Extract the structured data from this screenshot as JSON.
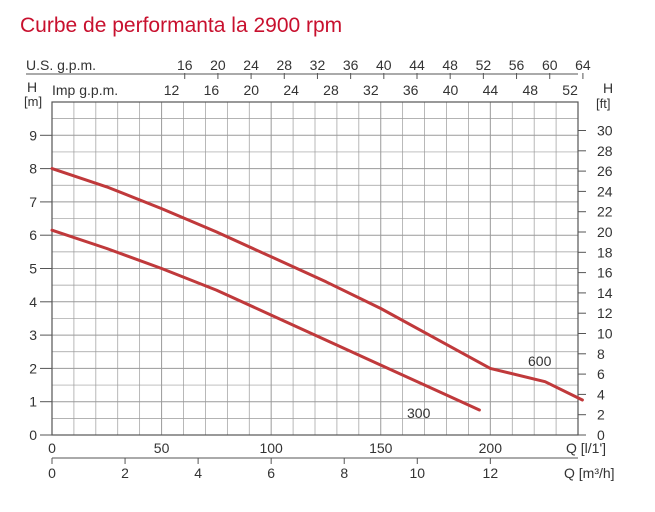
{
  "chart_data": {
    "type": "line",
    "title": "Curbe de performanta la 2900 rpm",
    "x_axis": {
      "label": "Q [l/1']",
      "range": [
        0,
        240
      ],
      "ticks": [
        "0",
        "50",
        "100",
        "150",
        "200"
      ]
    },
    "x_axis_m3h": {
      "label": "Q [m³/h]",
      "ticks": [
        "0",
        "2",
        "4",
        "6",
        "8",
        "10",
        "12"
      ]
    },
    "x_axis_us_gpm": {
      "label": "U.S. g.p.m.",
      "ticks": [
        "16",
        "20",
        "24",
        "28",
        "32",
        "36",
        "40",
        "44",
        "48",
        "52",
        "56",
        "60",
        "64"
      ]
    },
    "x_axis_imp_gpm": {
      "label": "Imp g.p.m.",
      "ticks": [
        "12",
        "16",
        "20",
        "24",
        "28",
        "32",
        "36",
        "40",
        "44",
        "48",
        "52"
      ]
    },
    "y_axis": {
      "label": "H [m]",
      "label_top": "H",
      "label_unit": "[m]",
      "range": [
        0,
        10
      ],
      "ticks": [
        "0",
        "1",
        "2",
        "3",
        "4",
        "5",
        "6",
        "7",
        "8",
        "9"
      ]
    },
    "y_axis_ft": {
      "label_top": "H",
      "label_unit": "[ft]",
      "ticks": [
        "0",
        "2",
        "4",
        "6",
        "8",
        "10",
        "12",
        "14",
        "16",
        "18",
        "20",
        "22",
        "24",
        "26",
        "28",
        "30"
      ]
    },
    "grid": true,
    "series": [
      {
        "name": "600",
        "color": "#c0393b",
        "x": [
          0,
          25,
          50,
          75,
          100,
          125,
          150,
          175,
          200,
          225,
          242
        ],
        "y": [
          8.0,
          7.45,
          6.8,
          6.1,
          5.35,
          4.6,
          3.8,
          2.9,
          2.0,
          1.6,
          1.05
        ]
      },
      {
        "name": "300",
        "color": "#c0393b",
        "x": [
          0,
          25,
          50,
          75,
          100,
          125,
          150,
          175,
          195
        ],
        "y": [
          6.15,
          5.6,
          5.0,
          4.35,
          3.6,
          2.85,
          2.1,
          1.35,
          0.75
        ]
      }
    ]
  }
}
